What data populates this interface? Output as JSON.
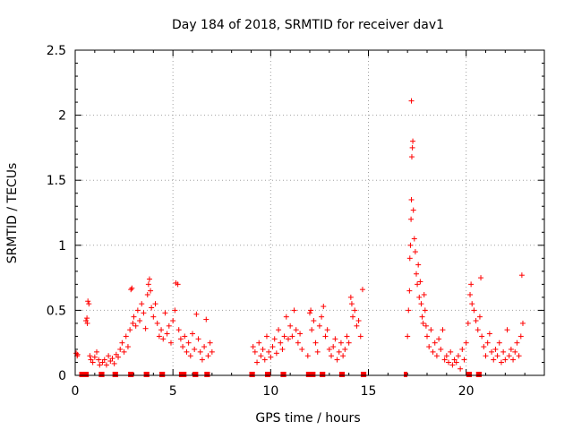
{
  "chart_data": {
    "type": "scatter",
    "title": "Day 184 of 2018, SRMTID for receiver dav1",
    "xlabel": "GPS time / hours",
    "ylabel": "SRMTID / TECUs",
    "xlim": [
      0,
      24
    ],
    "ylim": [
      0,
      2.5
    ],
    "xticks": [
      0,
      5,
      10,
      15,
      20
    ],
    "xtick_labels": [
      "0",
      "5",
      "10",
      "15",
      "20"
    ],
    "yticks": [
      0,
      0.5,
      1,
      1.5,
      2,
      2.5
    ],
    "ytick_labels": [
      "0",
      "0.5",
      "1",
      "1.5",
      "2",
      "2.5"
    ],
    "grid": true,
    "marker": "+",
    "color": "#ff0000",
    "series": [
      {
        "name": "SRMTID",
        "points": [
          [
            0.05,
            0.17
          ],
          [
            0.1,
            0.15
          ],
          [
            0.12,
            0.16
          ],
          [
            0.55,
            0.42
          ],
          [
            0.6,
            0.44
          ],
          [
            0.62,
            0.4
          ],
          [
            0.65,
            0.57
          ],
          [
            0.7,
            0.55
          ],
          [
            0.75,
            0.15
          ],
          [
            0.8,
            0.12
          ],
          [
            0.9,
            0.1
          ],
          [
            1.0,
            0.14
          ],
          [
            1.1,
            0.18
          ],
          [
            1.2,
            0.12
          ],
          [
            1.25,
            0.08
          ],
          [
            1.4,
            0.1
          ],
          [
            1.5,
            0.12
          ],
          [
            1.6,
            0.08
          ],
          [
            1.7,
            0.15
          ],
          [
            1.8,
            0.11
          ],
          [
            1.9,
            0.13
          ],
          [
            2.0,
            0.09
          ],
          [
            2.1,
            0.16
          ],
          [
            2.2,
            0.14
          ],
          [
            2.3,
            0.2
          ],
          [
            2.4,
            0.25
          ],
          [
            2.5,
            0.18
          ],
          [
            2.6,
            0.3
          ],
          [
            2.7,
            0.22
          ],
          [
            2.8,
            0.35
          ],
          [
            2.85,
            0.66
          ],
          [
            2.9,
            0.67
          ],
          [
            2.95,
            0.4
          ],
          [
            3.0,
            0.45
          ],
          [
            3.1,
            0.38
          ],
          [
            3.2,
            0.5
          ],
          [
            3.3,
            0.42
          ],
          [
            3.4,
            0.55
          ],
          [
            3.5,
            0.48
          ],
          [
            3.6,
            0.36
          ],
          [
            3.7,
            0.62
          ],
          [
            3.75,
            0.7
          ],
          [
            3.8,
            0.74
          ],
          [
            3.85,
            0.65
          ],
          [
            3.9,
            0.52
          ],
          [
            4.0,
            0.45
          ],
          [
            4.1,
            0.55
          ],
          [
            4.2,
            0.4
          ],
          [
            4.3,
            0.3
          ],
          [
            4.4,
            0.35
          ],
          [
            4.5,
            0.28
          ],
          [
            4.6,
            0.48
          ],
          [
            4.7,
            0.32
          ],
          [
            4.8,
            0.38
          ],
          [
            4.9,
            0.25
          ],
          [
            5.0,
            0.42
          ],
          [
            5.1,
            0.5
          ],
          [
            5.15,
            0.71
          ],
          [
            5.25,
            0.7
          ],
          [
            5.3,
            0.35
          ],
          [
            5.4,
            0.28
          ],
          [
            5.5,
            0.22
          ],
          [
            5.6,
            0.3
          ],
          [
            5.7,
            0.18
          ],
          [
            5.8,
            0.25
          ],
          [
            5.9,
            0.15
          ],
          [
            6.0,
            0.32
          ],
          [
            6.1,
            0.2
          ],
          [
            6.2,
            0.47
          ],
          [
            6.3,
            0.28
          ],
          [
            6.4,
            0.18
          ],
          [
            6.5,
            0.12
          ],
          [
            6.6,
            0.22
          ],
          [
            6.7,
            0.43
          ],
          [
            6.8,
            0.15
          ],
          [
            6.9,
            0.25
          ],
          [
            7.0,
            0.18
          ],
          [
            9.1,
            0.22
          ],
          [
            9.2,
            0.18
          ],
          [
            9.3,
            0.1
          ],
          [
            9.4,
            0.25
          ],
          [
            9.5,
            0.15
          ],
          [
            9.6,
            0.2
          ],
          [
            9.7,
            0.12
          ],
          [
            9.8,
            0.3
          ],
          [
            9.9,
            0.18
          ],
          [
            10.0,
            0.14
          ],
          [
            10.1,
            0.22
          ],
          [
            10.2,
            0.28
          ],
          [
            10.3,
            0.17
          ],
          [
            10.4,
            0.35
          ],
          [
            10.5,
            0.25
          ],
          [
            10.6,
            0.2
          ],
          [
            10.7,
            0.3
          ],
          [
            10.8,
            0.45
          ],
          [
            10.9,
            0.28
          ],
          [
            11.0,
            0.38
          ],
          [
            11.1,
            0.3
          ],
          [
            11.2,
            0.5
          ],
          [
            11.3,
            0.35
          ],
          [
            11.4,
            0.25
          ],
          [
            11.5,
            0.32
          ],
          [
            11.6,
            0.2
          ],
          [
            11.9,
            0.15
          ],
          [
            12.0,
            0.48
          ],
          [
            12.05,
            0.5
          ],
          [
            12.1,
            0.35
          ],
          [
            12.2,
            0.42
          ],
          [
            12.3,
            0.25
          ],
          [
            12.4,
            0.18
          ],
          [
            12.5,
            0.38
          ],
          [
            12.6,
            0.45
          ],
          [
            12.7,
            0.53
          ],
          [
            12.8,
            0.3
          ],
          [
            12.9,
            0.35
          ],
          [
            13.0,
            0.2
          ],
          [
            13.1,
            0.15
          ],
          [
            13.2,
            0.22
          ],
          [
            13.3,
            0.28
          ],
          [
            13.4,
            0.12
          ],
          [
            13.5,
            0.18
          ],
          [
            13.6,
            0.25
          ],
          [
            13.7,
            0.15
          ],
          [
            13.8,
            0.2
          ],
          [
            13.9,
            0.3
          ],
          [
            14.0,
            0.25
          ],
          [
            14.1,
            0.6
          ],
          [
            14.15,
            0.55
          ],
          [
            14.2,
            0.45
          ],
          [
            14.3,
            0.5
          ],
          [
            14.4,
            0.38
          ],
          [
            14.5,
            0.42
          ],
          [
            14.6,
            0.3
          ],
          [
            14.7,
            0.66
          ],
          [
            17.0,
            0.3
          ],
          [
            17.05,
            0.5
          ],
          [
            17.1,
            0.65
          ],
          [
            17.12,
            0.9
          ],
          [
            17.15,
            1.0
          ],
          [
            17.18,
            1.2
          ],
          [
            17.2,
            1.35
          ],
          [
            17.22,
            1.68
          ],
          [
            17.25,
            1.75
          ],
          [
            17.27,
            1.8
          ],
          [
            17.2,
            2.11
          ],
          [
            17.3,
            1.27
          ],
          [
            17.35,
            1.05
          ],
          [
            17.4,
            0.95
          ],
          [
            17.45,
            0.78
          ],
          [
            17.5,
            0.7
          ],
          [
            17.55,
            0.85
          ],
          [
            17.6,
            0.6
          ],
          [
            17.65,
            0.72
          ],
          [
            17.7,
            0.55
          ],
          [
            17.75,
            0.45
          ],
          [
            17.8,
            0.4
          ],
          [
            17.85,
            0.62
          ],
          [
            17.9,
            0.5
          ],
          [
            17.95,
            0.38
          ],
          [
            18.0,
            0.3
          ],
          [
            18.1,
            0.22
          ],
          [
            18.2,
            0.35
          ],
          [
            18.3,
            0.18
          ],
          [
            18.4,
            0.25
          ],
          [
            18.5,
            0.15
          ],
          [
            18.6,
            0.28
          ],
          [
            18.7,
            0.2
          ],
          [
            18.8,
            0.35
          ],
          [
            18.9,
            0.12
          ],
          [
            19.0,
            0.15
          ],
          [
            19.1,
            0.1
          ],
          [
            19.2,
            0.18
          ],
          [
            19.3,
            0.08
          ],
          [
            19.4,
            0.12
          ],
          [
            19.5,
            0.1
          ],
          [
            19.6,
            0.15
          ],
          [
            19.7,
            0.05
          ],
          [
            19.8,
            0.2
          ],
          [
            19.9,
            0.12
          ],
          [
            20.0,
            0.25
          ],
          [
            20.1,
            0.4
          ],
          [
            20.2,
            0.62
          ],
          [
            20.25,
            0.7
          ],
          [
            20.3,
            0.55
          ],
          [
            20.4,
            0.5
          ],
          [
            20.5,
            0.42
          ],
          [
            20.6,
            0.35
          ],
          [
            20.7,
            0.45
          ],
          [
            20.75,
            0.75
          ],
          [
            20.8,
            0.3
          ],
          [
            20.9,
            0.22
          ],
          [
            21.0,
            0.15
          ],
          [
            21.1,
            0.25
          ],
          [
            21.2,
            0.32
          ],
          [
            21.3,
            0.18
          ],
          [
            21.4,
            0.12
          ],
          [
            21.5,
            0.2
          ],
          [
            21.6,
            0.15
          ],
          [
            21.7,
            0.25
          ],
          [
            21.8,
            0.1
          ],
          [
            21.9,
            0.18
          ],
          [
            22.0,
            0.12
          ],
          [
            22.1,
            0.35
          ],
          [
            22.2,
            0.15
          ],
          [
            22.3,
            0.2
          ],
          [
            22.4,
            0.12
          ],
          [
            22.5,
            0.18
          ],
          [
            22.6,
            0.25
          ],
          [
            22.7,
            0.15
          ],
          [
            22.8,
            0.3
          ],
          [
            22.85,
            0.77
          ],
          [
            22.9,
            0.4
          ]
        ]
      }
    ],
    "zero_markers_x": [
      0.3,
      0.4,
      0.5,
      0.6,
      1.3,
      1.4,
      2.0,
      2.1,
      2.8,
      2.9,
      3.6,
      3.7,
      4.4,
      4.5,
      5.4,
      5.5,
      5.6,
      6.1,
      6.2,
      6.7,
      6.8,
      9.0,
      9.1,
      9.8,
      9.9,
      10.6,
      10.7,
      11.9,
      12.0,
      12.1,
      12.2,
      12.6,
      12.7,
      13.6,
      13.7,
      14.7,
      14.8,
      16.9,
      20.1,
      20.2,
      20.6,
      20.7
    ]
  }
}
